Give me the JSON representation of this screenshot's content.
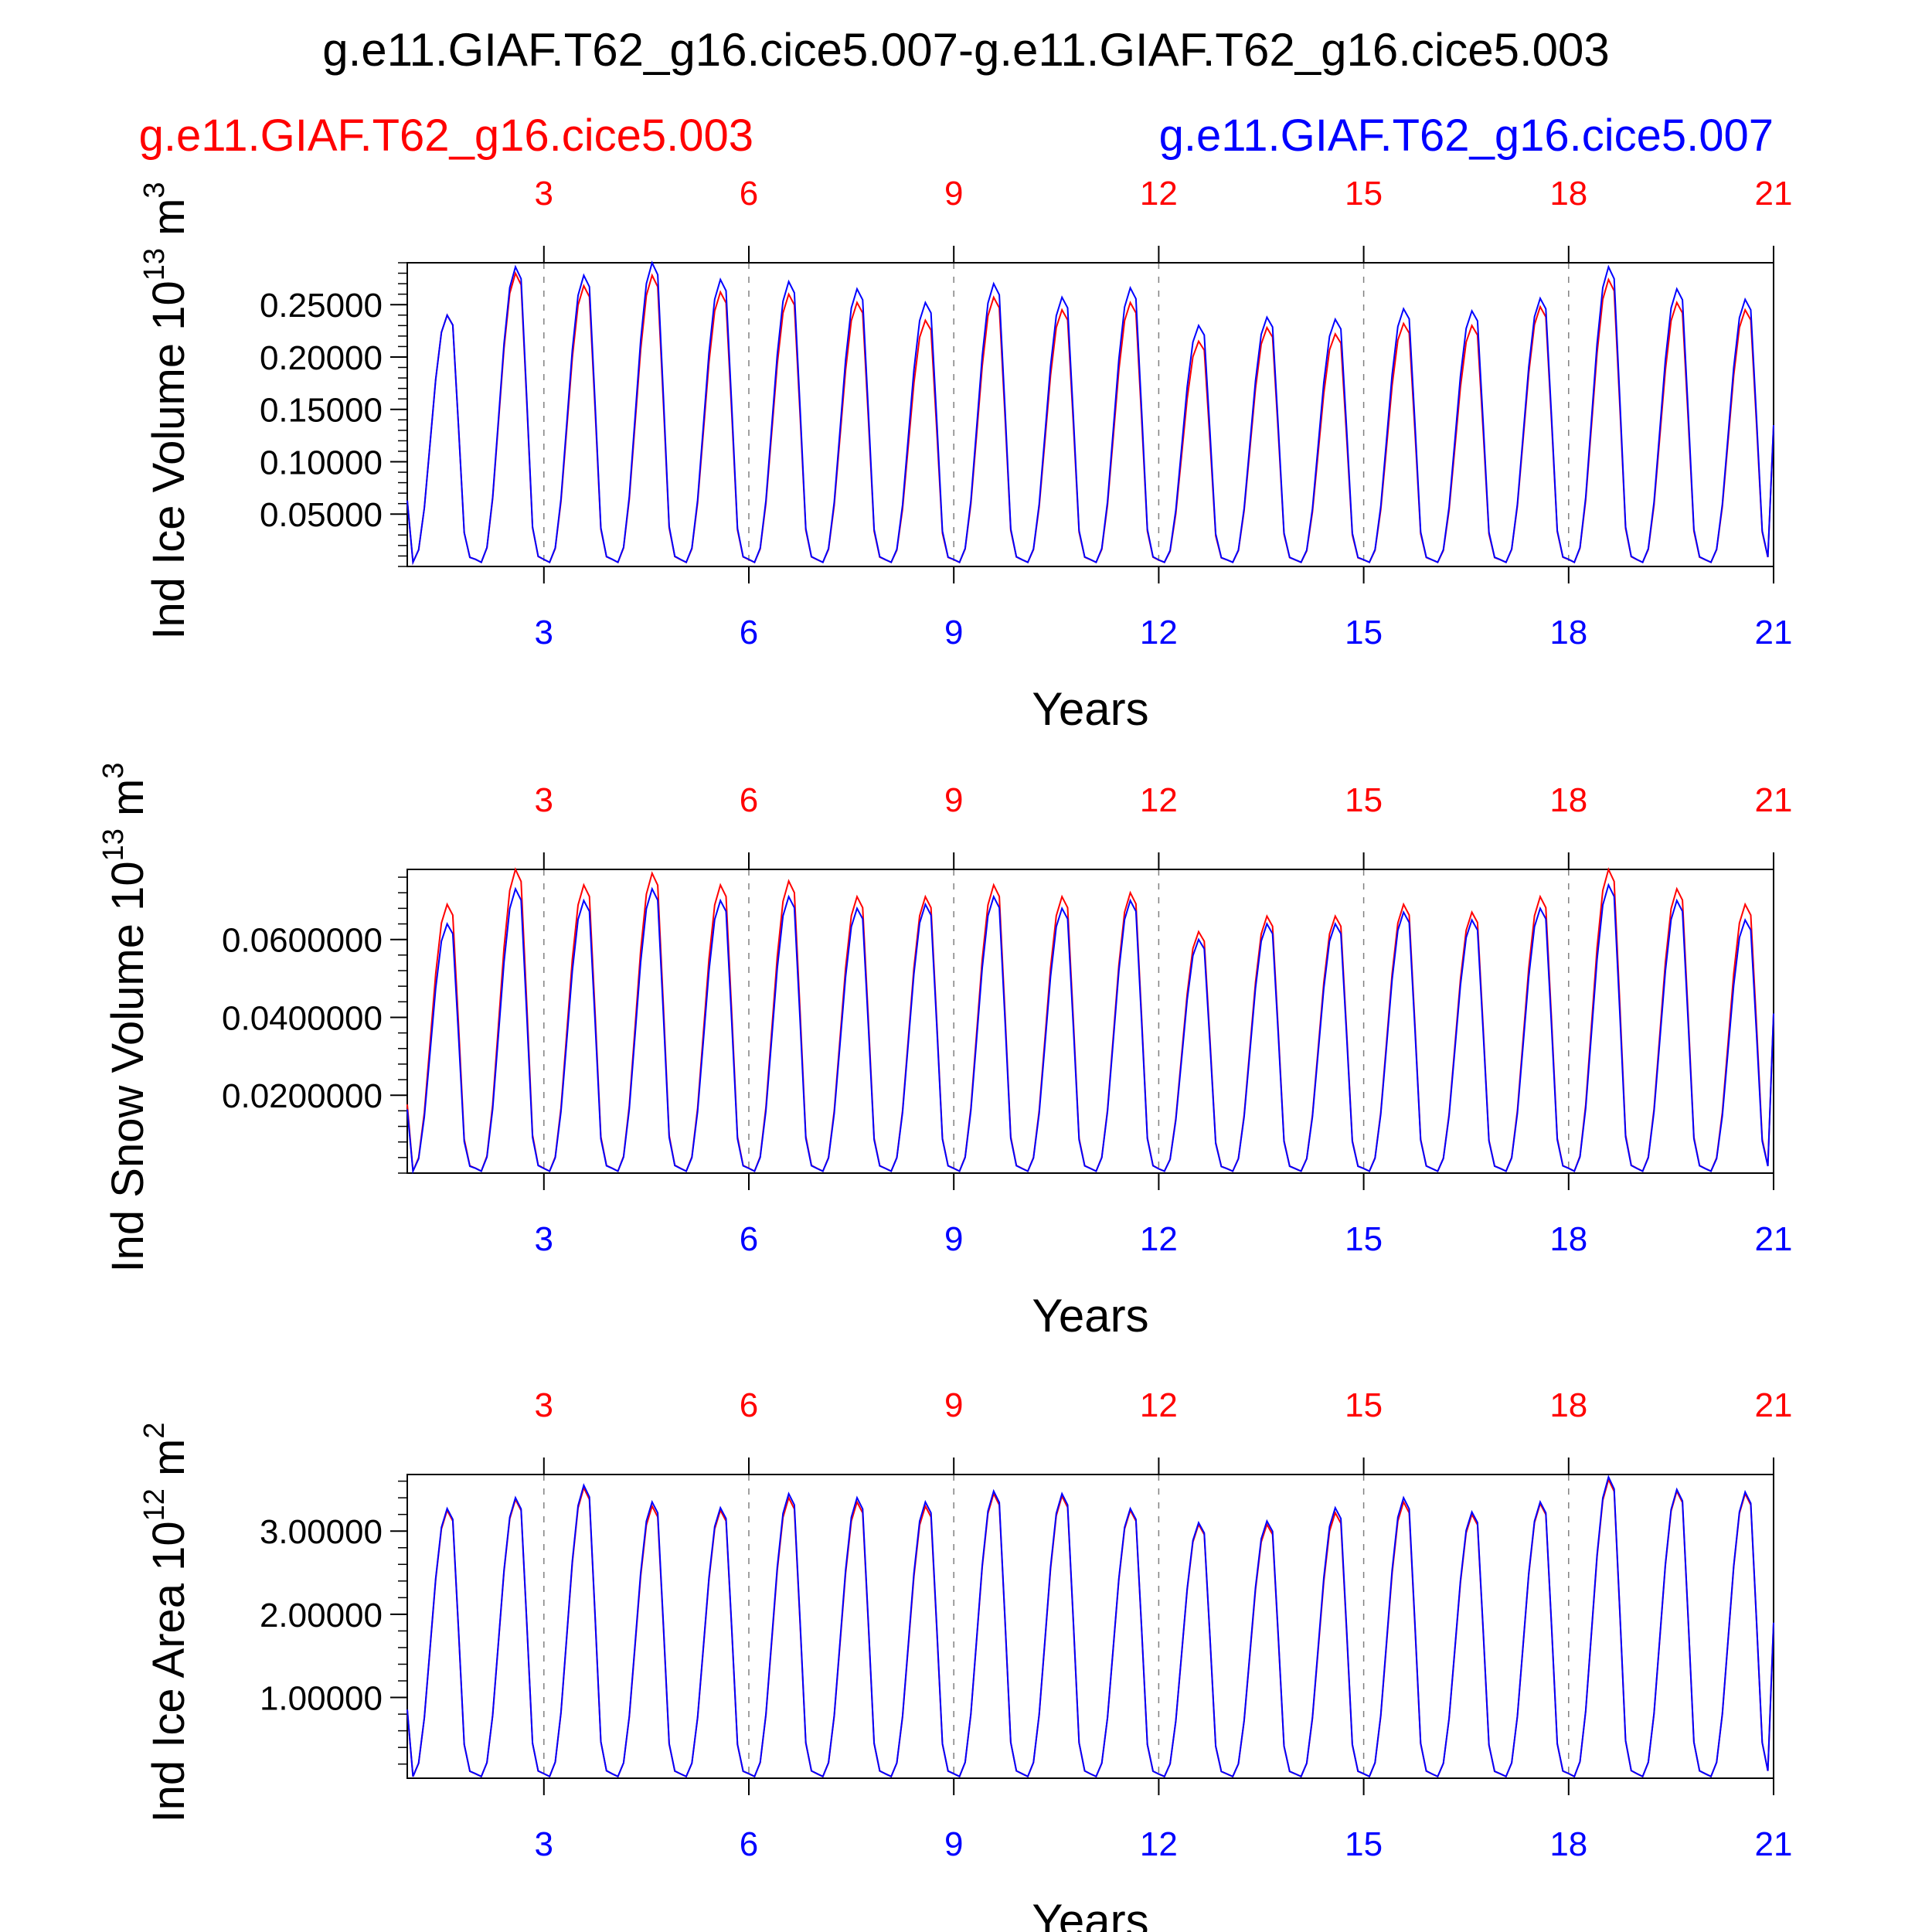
{
  "title": "g.e11.GIAF.T62_g16.cice5.007-g.e11.GIAF.T62_g16.cice5.003",
  "legend": [
    {
      "label": "g.e11.GIAF.T62_g16.cice5.003",
      "color": "#ff0000"
    },
    {
      "label": "g.e11.GIAF.T62_g16.cice5.007",
      "color": "#0000ff"
    }
  ],
  "colors": {
    "red": "#ff0000",
    "blue": "#0000ff",
    "axis": "#000000",
    "grid": "#808080"
  },
  "chart_data": [
    {
      "type": "line",
      "ylabel": "Ind Ice Volume 10",
      "ylabel_exp": "13",
      "ylabel_unit": " m",
      "ylabel_unit_exp": "3",
      "xlabel": "Years",
      "xlim": [
        1,
        21
      ],
      "ylim": [
        0,
        0.29
      ],
      "x_ticks": [
        3,
        6,
        9,
        12,
        15,
        18,
        21
      ],
      "x_tick_labels": [
        "3",
        "6",
        "9",
        "12",
        "15",
        "18",
        "21"
      ],
      "y_ticks": [
        0.05,
        0.1,
        0.15,
        0.2,
        0.25
      ],
      "y_tick_labels": [
        "0.05000",
        "0.10000",
        "0.15000",
        "0.20000",
        "0.25000"
      ],
      "y_minor_step": 0.01,
      "grid": "vertical dashed at major x ticks",
      "first_x": 1.0,
      "min_value": 0.004,
      "final_value": 0.135,
      "series": [
        {
          "name": "g.e11.GIAF.T62_g16.cice5.003",
          "color": "#ff0000",
          "annual_max": [
            0.24,
            0.28,
            0.268,
            0.278,
            0.262,
            0.26,
            0.252,
            0.235,
            0.257,
            0.245,
            0.252,
            0.215,
            0.228,
            0.222,
            0.232,
            0.23,
            0.248,
            0.274,
            0.252,
            0.245
          ]
        },
        {
          "name": "g.e11.GIAF.T62_g16.cice5.007",
          "color": "#0000ff",
          "annual_max": [
            0.24,
            0.286,
            0.278,
            0.29,
            0.274,
            0.272,
            0.265,
            0.252,
            0.27,
            0.257,
            0.266,
            0.23,
            0.238,
            0.236,
            0.246,
            0.244,
            0.256,
            0.286,
            0.265,
            0.255
          ]
        }
      ]
    },
    {
      "type": "line",
      "ylabel": "Ind Snow Volume 10",
      "ylabel_exp": "13",
      "ylabel_unit": " m",
      "ylabel_unit_exp": "3",
      "xlabel": "Years",
      "xlim": [
        1,
        21
      ],
      "ylim": [
        0,
        0.078
      ],
      "x_ticks": [
        3,
        6,
        9,
        12,
        15,
        18,
        21
      ],
      "x_tick_labels": [
        "3",
        "6",
        "9",
        "12",
        "15",
        "18",
        "21"
      ],
      "y_ticks": [
        0.02,
        0.04,
        0.06
      ],
      "y_tick_labels": [
        "0.0200000",
        "0.0400000",
        "0.0600000"
      ],
      "y_minor_step": 0.004,
      "grid": "vertical dashed at major x ticks",
      "first_x": 1.0,
      "min_value": 0.0005,
      "final_value": 0.041,
      "series": [
        {
          "name": "g.e11.GIAF.T62_g16.cice5.003",
          "color": "#ff0000",
          "annual_max": [
            0.069,
            0.078,
            0.074,
            0.077,
            0.074,
            0.075,
            0.071,
            0.071,
            0.074,
            0.071,
            0.072,
            0.062,
            0.066,
            0.066,
            0.069,
            0.067,
            0.071,
            0.078,
            0.073,
            0.069
          ]
        },
        {
          "name": "g.e11.GIAF.T62_g16.cice5.007",
          "color": "#0000ff",
          "annual_max": [
            0.064,
            0.073,
            0.07,
            0.073,
            0.07,
            0.071,
            0.068,
            0.069,
            0.071,
            0.068,
            0.07,
            0.06,
            0.064,
            0.064,
            0.067,
            0.065,
            0.068,
            0.074,
            0.07,
            0.065
          ]
        }
      ]
    },
    {
      "type": "line",
      "ylabel": "Ind Ice Area 10",
      "ylabel_exp": "12",
      "ylabel_unit": " m",
      "ylabel_unit_exp": "2",
      "xlabel": "Years",
      "xlim": [
        1,
        21
      ],
      "ylim": [
        0.03,
        3.68
      ],
      "x_ticks": [
        3,
        6,
        9,
        12,
        15,
        18,
        21
      ],
      "x_tick_labels": [
        "3",
        "6",
        "9",
        "12",
        "15",
        "18",
        "21"
      ],
      "y_ticks": [
        1.0,
        2.0,
        3.0
      ],
      "y_tick_labels": [
        "1.00000",
        "2.00000",
        "3.00000"
      ],
      "y_minor_step": 0.2,
      "grid": "vertical dashed at major x ticks",
      "first_x": 1.0,
      "min_value": 0.05,
      "final_value": 1.9,
      "series": [
        {
          "name": "g.e11.GIAF.T62_g16.cice5.003",
          "color": "#ff0000",
          "annual_max": [
            3.25,
            3.38,
            3.52,
            3.3,
            3.25,
            3.4,
            3.35,
            3.3,
            3.45,
            3.42,
            3.25,
            3.08,
            3.08,
            3.22,
            3.35,
            3.2,
            3.33,
            3.62,
            3.48,
            3.45
          ]
        },
        {
          "name": "g.e11.GIAF.T62_g16.cice5.007",
          "color": "#0000ff",
          "annual_max": [
            3.27,
            3.4,
            3.55,
            3.35,
            3.28,
            3.45,
            3.4,
            3.35,
            3.48,
            3.45,
            3.27,
            3.1,
            3.12,
            3.28,
            3.4,
            3.23,
            3.35,
            3.65,
            3.5,
            3.47
          ]
        }
      ]
    }
  ]
}
